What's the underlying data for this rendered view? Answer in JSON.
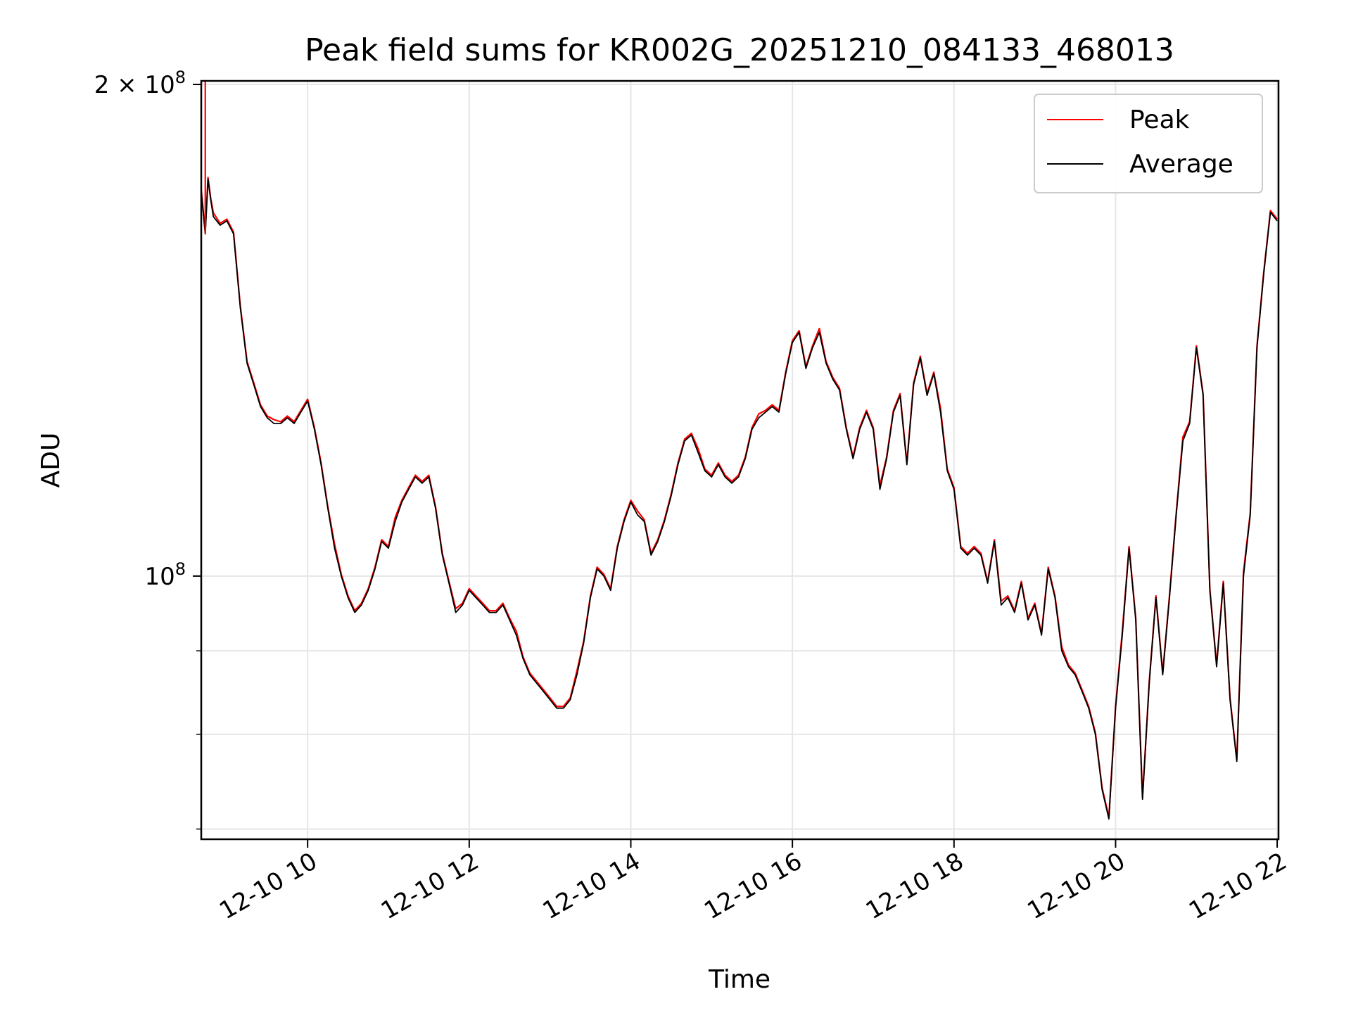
{
  "chart_data": {
    "type": "line",
    "title": "Peak field sums for KR002G_20251210_084133_468013",
    "xlabel": "Time",
    "ylabel": "ADU",
    "yscale": "log",
    "xlim": [
      "2025-12-10T08:41",
      "2025-12-10T22:01"
    ],
    "ylim": [
      69000000,
      201000000
    ],
    "grid": true,
    "legend_position": "top-right",
    "x_ticks": [
      {
        "value": "2025-12-10T10:00",
        "label": "12-10 10"
      },
      {
        "value": "2025-12-10T12:00",
        "label": "12-10 12"
      },
      {
        "value": "2025-12-10T14:00",
        "label": "12-10 14"
      },
      {
        "value": "2025-12-10T16:00",
        "label": "12-10 16"
      },
      {
        "value": "2025-12-10T18:00",
        "label": "12-10 18"
      },
      {
        "value": "2025-12-10T20:00",
        "label": "12-10 20"
      },
      {
        "value": "2025-12-10T22:00",
        "label": "12-10 22"
      }
    ],
    "y_major_ticks": [
      {
        "value": 100000000,
        "base": "10",
        "exp": "8"
      },
      {
        "value": 200000000,
        "base": "2 × 10",
        "exp": "8"
      }
    ],
    "y_minor_ticks": [
      70000000,
      80000000,
      90000000,
      300000000
    ],
    "series": [
      {
        "name": "Peak",
        "color": "#ff0000"
      },
      {
        "name": "Average",
        "color": "#000000"
      }
    ],
    "x": [
      "08:41",
      "08:44",
      "08:46",
      "08:48",
      "08:50",
      "08:55",
      "09:00",
      "09:05",
      "09:10",
      "09:15",
      "09:20",
      "09:25",
      "09:30",
      "09:35",
      "09:40",
      "09:45",
      "09:50",
      "09:55",
      "10:00",
      "10:05",
      "10:10",
      "10:15",
      "10:20",
      "10:25",
      "10:30",
      "10:35",
      "10:40",
      "10:45",
      "10:50",
      "10:55",
      "11:00",
      "11:05",
      "11:10",
      "11:15",
      "11:20",
      "11:25",
      "11:30",
      "11:35",
      "11:40",
      "11:45",
      "11:50",
      "11:55",
      "12:00",
      "12:05",
      "12:10",
      "12:15",
      "12:20",
      "12:25",
      "12:30",
      "12:35",
      "12:40",
      "12:45",
      "12:50",
      "12:55",
      "13:00",
      "13:05",
      "13:10",
      "13:15",
      "13:20",
      "13:25",
      "13:30",
      "13:35",
      "13:40",
      "13:45",
      "13:50",
      "13:55",
      "14:00",
      "14:05",
      "14:10",
      "14:15",
      "14:20",
      "14:25",
      "14:30",
      "14:35",
      "14:40",
      "14:45",
      "14:50",
      "14:55",
      "15:00",
      "15:05",
      "15:10",
      "15:15",
      "15:20",
      "15:25",
      "15:30",
      "15:35",
      "15:40",
      "15:45",
      "15:50",
      "15:55",
      "16:00",
      "16:05",
      "16:10",
      "16:15",
      "16:20",
      "16:25",
      "16:30",
      "16:35",
      "16:40",
      "16:45",
      "16:50",
      "16:55",
      "17:00",
      "17:05",
      "17:10",
      "17:15",
      "17:20",
      "17:25",
      "17:30",
      "17:35",
      "17:40",
      "17:45",
      "17:50",
      "17:55",
      "18:00",
      "18:05",
      "18:10",
      "18:15",
      "18:20",
      "18:25",
      "18:30",
      "18:35",
      "18:40",
      "18:45",
      "18:50",
      "18:55",
      "19:00",
      "19:05",
      "19:10",
      "19:15",
      "19:20",
      "19:25",
      "19:30",
      "19:35",
      "19:40",
      "19:45",
      "19:50",
      "19:55",
      "20:00",
      "20:05",
      "20:10",
      "20:15",
      "20:20",
      "20:25",
      "20:30",
      "20:35",
      "20:40",
      "20:45",
      "20:50",
      "20:55",
      "21:00",
      "21:05",
      "21:10",
      "21:15",
      "21:20",
      "21:25",
      "21:30",
      "21:35",
      "21:40",
      "21:45",
      "21:50",
      "21:55",
      "22:00"
    ],
    "values": [
      172,
      162,
      175,
      170,
      166,
      164,
      165,
      162,
      146,
      135,
      131,
      127,
      125,
      124,
      124,
      125,
      124,
      126,
      128,
      123,
      117,
      110,
      104,
      100,
      97,
      95,
      96,
      98,
      101,
      105,
      104,
      108,
      111,
      113,
      115,
      114,
      115,
      110,
      103,
      99,
      95,
      96,
      98,
      97,
      96,
      95,
      95,
      96,
      94,
      92,
      89,
      87,
      86,
      85,
      84,
      83,
      83,
      84,
      87,
      91,
      97,
      101,
      100,
      98,
      104,
      108,
      111,
      109,
      108,
      103,
      105,
      108,
      112,
      117,
      121,
      122,
      119,
      116,
      115,
      117,
      115,
      114,
      115,
      118,
      123,
      125,
      126,
      127,
      126,
      133,
      139,
      141,
      134,
      138,
      141,
      135,
      132,
      130,
      123,
      118,
      123,
      126,
      123,
      113,
      118,
      126,
      129,
      117,
      131,
      136,
      129,
      133,
      126,
      116,
      113,
      104,
      103,
      104,
      103,
      99,
      105,
      96,
      97,
      95,
      99,
      94,
      96,
      92,
      101,
      97,
      90,
      88,
      87,
      85,
      83,
      80,
      74,
      71,
      83,
      92,
      104,
      94,
      73,
      86,
      97,
      87,
      97,
      109,
      121,
      124,
      138,
      129,
      98,
      88,
      99,
      84,
      77,
      100,
      109,
      138,
      153,
      167,
      165
    ]
  }
}
